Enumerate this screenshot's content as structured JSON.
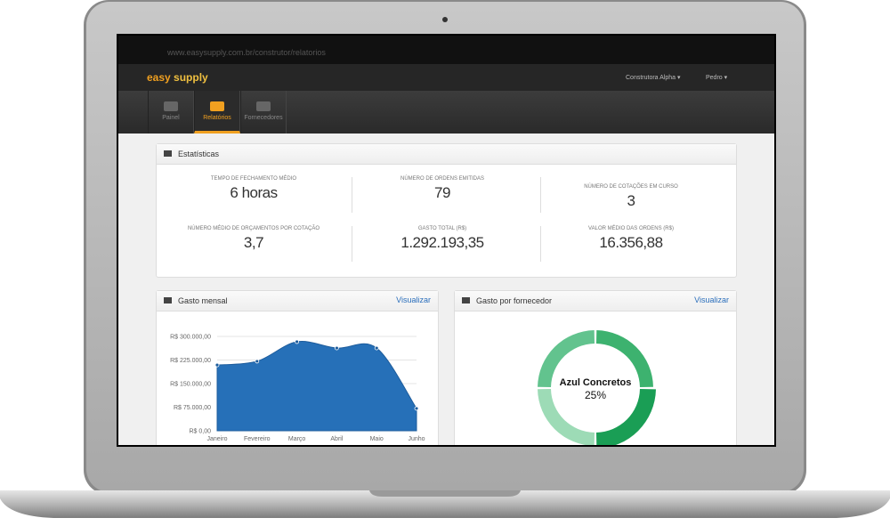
{
  "browser": {
    "url": "www.easysupply.com.br/construtor/relatorios"
  },
  "navbar": {
    "brand_left": "easy",
    "brand_right": "supply",
    "company": "Construtora Alpha",
    "user": "Pedro"
  },
  "tabs": [
    "Painel",
    "Relatórios",
    "Fornecedores"
  ],
  "active_tab": 1,
  "stats": {
    "title": "Estatísticas",
    "items": [
      {
        "label": "TEMPO DE FECHAMENTO MÉDIO",
        "value": "6 horas"
      },
      {
        "label": "NÚMERO DE ORDENS EMITIDAS",
        "value": "79"
      },
      {
        "label": "NÚMERO DE COTAÇÕES EM CURSO",
        "value": "3"
      },
      {
        "label": "NÚMERO MÉDIO DE ORÇAMENTOS POR COTAÇÃO",
        "value": "3,7"
      },
      {
        "label": "GASTO TOTAL (R$)",
        "value": "1.292.193,35"
      },
      {
        "label": "VALOR MÉDIO DAS ORDENS (R$)",
        "value": "16.356,88"
      }
    ]
  },
  "chart_data": [
    {
      "type": "area",
      "title": "Gasto mensal",
      "action": "Visualizar",
      "categories": [
        "Janeiro",
        "Fevereiro",
        "Março",
        "Abril",
        "Maio",
        "Junho"
      ],
      "values": [
        209000,
        221000,
        283000,
        263000,
        263000,
        71000
      ],
      "color": "#2670b8",
      "ylim": [
        0,
        300000
      ],
      "yticks": [
        {
          "value": 0,
          "label": "R$ 0,00"
        },
        {
          "value": 75000,
          "label": "R$ 75.000,00"
        },
        {
          "value": 150000,
          "label": "R$ 150.000,00"
        },
        {
          "value": 225000,
          "label": "R$ 225.000,00"
        },
        {
          "value": 300000,
          "label": "R$ 300.000,00"
        }
      ],
      "grid": true
    },
    {
      "type": "pie",
      "title": "Gasto por fornecedor",
      "action": "Visualizar",
      "labels": [
        null,
        "Azul Concretos",
        null,
        null
      ],
      "values": [
        25,
        25,
        25,
        25
      ],
      "value_labels": [
        null,
        "25%",
        null,
        null
      ],
      "colors": [
        "#3db26f",
        "#1a9e55",
        "#9ddbb6",
        "#62c38e"
      ],
      "highlight": 1
    }
  ]
}
